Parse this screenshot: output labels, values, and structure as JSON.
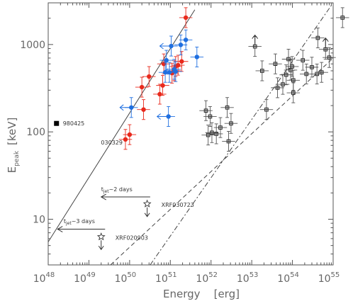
{
  "chart_data": {
    "type": "scatter",
    "title": "",
    "xlabel": "Energy    [erg]",
    "ylabel_main": "E",
    "ylabel_sub": "peak",
    "ylabel_unit": "[keV]",
    "x_scale": "log",
    "y_scale": "log",
    "xlim": [
      1e+48,
      1e+55
    ],
    "ylim": [
      3,
      3000
    ],
    "grid": false,
    "x_ticks": [
      {
        "value": 1e+48,
        "base": "10",
        "exp": "48"
      },
      {
        "value": 1e+49,
        "base": "10",
        "exp": "49"
      },
      {
        "value": 1e+50,
        "base": "10",
        "exp": "50"
      },
      {
        "value": 1e+51,
        "base": "10",
        "exp": "51"
      },
      {
        "value": 1e+52,
        "base": "10",
        "exp": "52"
      },
      {
        "value": 1e+53,
        "base": "10",
        "exp": "53"
      },
      {
        "value": 1e+54,
        "base": "10",
        "exp": "54"
      },
      {
        "value": 1e+55,
        "base": "10",
        "exp": "55"
      }
    ],
    "y_ticks": [
      {
        "value": 10,
        "label": "10"
      },
      {
        "value": 100,
        "label": "100"
      },
      {
        "value": 1000,
        "label": "1000"
      }
    ],
    "colors": {
      "red": "#e8291c",
      "blue": "#1f6fe0",
      "black": "#222222",
      "grey": "#555555"
    },
    "red_points": [
      {
        "x": 7.9e+49,
        "y": 82
      },
      {
        "x": 1e+50,
        "y": 93
      },
      {
        "x": 2e+50,
        "y": 325
      },
      {
        "x": 2.2e+50,
        "y": 180
      },
      {
        "x": 3e+50,
        "y": 430
      },
      {
        "x": 5.5e+50,
        "y": 270
      },
      {
        "x": 6.5e+50,
        "y": 340
      },
      {
        "x": 6.9e+50,
        "y": 600
      },
      {
        "x": 1.1e+51,
        "y": 470
      },
      {
        "x": 1.25e+51,
        "y": 500
      },
      {
        "x": 1.35e+51,
        "y": 560
      },
      {
        "x": 1.55e+51,
        "y": 580
      },
      {
        "x": 1.9e+51,
        "y": 640
      },
      {
        "x": 2.4e+51,
        "y": 2030
      }
    ],
    "blue_points": [
      {
        "x": 1.1e+50,
        "y": 190
      },
      {
        "x": 7.5e+50,
        "y": 480
      },
      {
        "x": 8e+50,
        "y": 660
      },
      {
        "x": 9.5e+50,
        "y": 480
      },
      {
        "x": 1.05e+51,
        "y": 960
      },
      {
        "x": 1.25e+51,
        "y": 520
      },
      {
        "x": 1.35e+51,
        "y": 490
      },
      {
        "x": 1.8e+51,
        "y": 990
      },
      {
        "x": 2.4e+51,
        "y": 1130
      },
      {
        "x": 9e+50,
        "y": 150
      },
      {
        "x": 4.5e+51,
        "y": 720
      }
    ],
    "black_points": [
      {
        "x": 7.5e+51,
        "y": 175
      },
      {
        "x": 8.5e+51,
        "y": 92
      },
      {
        "x": 9.5e+51,
        "y": 150
      },
      {
        "x": 1.05e+52,
        "y": 98
      },
      {
        "x": 1.35e+52,
        "y": 95
      },
      {
        "x": 1.7e+52,
        "y": 112
      },
      {
        "x": 2.5e+52,
        "y": 190
      },
      {
        "x": 2.7e+52,
        "y": 78
      },
      {
        "x": 3.1e+52,
        "y": 125
      },
      {
        "x": 1.2e+53,
        "y": 950
      },
      {
        "x": 1.8e+53,
        "y": 500
      },
      {
        "x": 2.3e+53,
        "y": 180
      },
      {
        "x": 3.8e+53,
        "y": 600
      },
      {
        "x": 4.3e+53,
        "y": 320
      },
      {
        "x": 5.8e+53,
        "y": 350
      },
      {
        "x": 7e+53,
        "y": 450
      },
      {
        "x": 8e+53,
        "y": 680
      },
      {
        "x": 9e+53,
        "y": 510
      },
      {
        "x": 9.8e+53,
        "y": 560
      },
      {
        "x": 1.05e+54,
        "y": 280
      },
      {
        "x": 1.05e+54,
        "y": 390
      },
      {
        "x": 1.8e+54,
        "y": 660
      },
      {
        "x": 2.2e+54,
        "y": 460
      },
      {
        "x": 3e+54,
        "y": 550
      },
      {
        "x": 4e+54,
        "y": 460
      },
      {
        "x": 4.2e+54,
        "y": 1190
      },
      {
        "x": 5.2e+54,
        "y": 480
      },
      {
        "x": 6.5e+54,
        "y": 880
      },
      {
        "x": 8e+54,
        "y": 710
      },
      {
        "x": 1.7e+55,
        "y": 2030
      }
    ],
    "open_stars": [
      {
        "x": 2.7e+50,
        "y": 15,
        "label": "XRF030723"
      },
      {
        "x": 2e+49,
        "y": 6.3,
        "label": "XRF020903"
      }
    ],
    "named_points": [
      {
        "x": 1.6e+48,
        "y": 125,
        "label": "980425",
        "marker": "filled-square"
      },
      {
        "x": 7.9e+49,
        "y": 82,
        "label": "030329",
        "marker": "red-dot"
      }
    ],
    "lines": [
      {
        "style": "solid",
        "from": [
          1e+48,
          5.5
        ],
        "to": [
          4e+51,
          2500
        ]
      },
      {
        "style": "dashed",
        "from": [
          3.4e+49,
          3
        ],
        "to": [
          1e+55,
          700
        ]
      },
      {
        "style": "dash-dot",
        "from": [
          3.2e+50,
          3
        ],
        "to": [
          1e+55,
          3000
        ]
      }
    ],
    "annotations": [
      {
        "label_main": "t",
        "label_sub": "jet",
        "label_rest": "~2 days",
        "text_x": 2e+49,
        "text_y": 21,
        "arrow_from": [
          3.2e+50,
          18
        ],
        "arrow_to": [
          2e+49,
          18
        ]
      },
      {
        "label_main": "t",
        "label_sub": "jet",
        "label_rest": "~3 days",
        "text_x": 2.4e+48,
        "text_y": 9.0,
        "arrow_from": [
          2.5e+49,
          7.7
        ],
        "arrow_to": [
          1.7e+48,
          7.7
        ]
      }
    ],
    "upper_limit_arrows": [
      {
        "x": 2.7e+50,
        "y": 15,
        "direction": "down"
      },
      {
        "x": 2e+49,
        "y": 6.3,
        "direction": "down"
      }
    ],
    "lower_limit_arrows": [
      {
        "x": 1.2e+53,
        "y": 950,
        "direction": "up"
      },
      {
        "x": 6.5e+54,
        "y": 880,
        "direction": "up"
      }
    ],
    "left_arrows": [
      {
        "x": 1.1e+50,
        "y": 190
      },
      {
        "x": 9e+50,
        "y": 150
      },
      {
        "x": 1.05e+51,
        "y": 960
      },
      {
        "x": 1.35e+51,
        "y": 490
      }
    ]
  }
}
